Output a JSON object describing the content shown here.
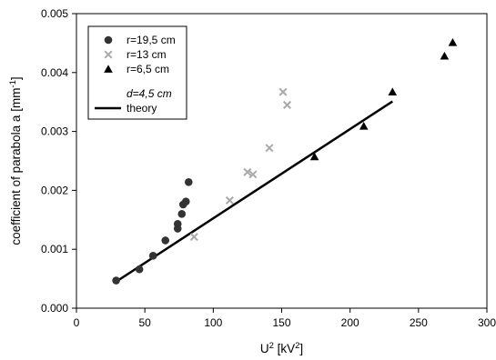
{
  "chart_data": {
    "type": "scatter",
    "xlabel": "U",
    "xlabel_sup": "2",
    "xlabel_unit_open": " [kV",
    "xlabel_unit_sup": "2",
    "xlabel_unit_close": "]",
    "ylabel": "coefficient of parabola a [mm",
    "ylabel_sup": "-1",
    "ylabel_close": "]",
    "xlim": [
      0,
      300
    ],
    "ylim": [
      0,
      0.005
    ],
    "x_ticks": [
      0,
      50,
      100,
      150,
      200,
      250,
      300
    ],
    "x_tick_labels": [
      "0",
      "50",
      "100",
      "150",
      "200",
      "250",
      "300"
    ],
    "y_ticks": [
      0,
      0.001,
      0.002,
      0.003,
      0.004,
      0.005
    ],
    "y_tick_labels": [
      "0.000",
      "0.001",
      "0.002",
      "0.003",
      "0.004",
      "0.005"
    ],
    "grid": false,
    "legend_position": "top-left",
    "series": [
      {
        "name": "r=19,5 cm",
        "marker": "circle",
        "color": "#333333",
        "points": [
          [
            29,
            0.00047
          ],
          [
            46,
            0.00066
          ],
          [
            56,
            0.00089
          ],
          [
            65,
            0.00115
          ],
          [
            74,
            0.00135
          ],
          [
            74,
            0.00143
          ],
          [
            77,
            0.0016
          ],
          [
            78,
            0.00176
          ],
          [
            80,
            0.00181
          ],
          [
            82,
            0.00214
          ]
        ]
      },
      {
        "name": "r=13 cm",
        "marker": "x",
        "color": "#aaaaaa",
        "points": [
          [
            86,
            0.00121
          ],
          [
            112,
            0.00183
          ],
          [
            125,
            0.00231
          ],
          [
            129,
            0.00227
          ],
          [
            141,
            0.00272
          ],
          [
            151,
            0.00367
          ],
          [
            154,
            0.00345
          ]
        ]
      },
      {
        "name": "r=6,5 cm",
        "marker": "triangle",
        "color": "#000000",
        "points": [
          [
            174,
            0.00257
          ],
          [
            210,
            0.00309
          ],
          [
            231,
            0.00367
          ],
          [
            269,
            0.00428
          ],
          [
            275,
            0.00451
          ]
        ]
      }
    ],
    "legend_note": "d=4,5 cm",
    "theory_line": {
      "name": "theory",
      "color": "#000000",
      "points": [
        [
          29,
          0.00045
        ],
        [
          231,
          0.00351
        ]
      ]
    }
  }
}
